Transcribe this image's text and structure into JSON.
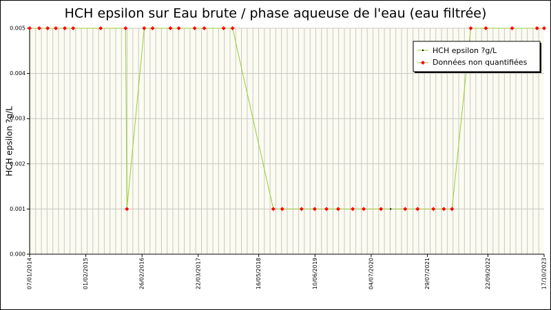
{
  "chart_data": {
    "type": "line",
    "title": "HCH epsilon sur Eau brute / phase aqueuse de l'eau (eau filtrée)",
    "y_label": "HCH epsilon ?g/L",
    "x": [
      "07/01/2014",
      "15/03/2014",
      "12/05/2014",
      "08/07/2014",
      "08/09/2014",
      "05/11/2014",
      "15/05/2015",
      "04/11/2015",
      "13/11/2015",
      "12/03/2016",
      "09/05/2016",
      "10/09/2016",
      "07/11/2016",
      "25/02/2017",
      "03/05/2017",
      "14/09/2017",
      "15/11/2017",
      "25/08/2018",
      "26/10/2018",
      "09/03/2019",
      "08/06/2019",
      "29/08/2019",
      "18/11/2019",
      "27/02/2020",
      "13/05/2020",
      "10/09/2020",
      "16/11/2020",
      "25/02/2021",
      "22/05/2021",
      "09/09/2021",
      "20/11/2021",
      "16/01/2022",
      "26/05/2022",
      "08/09/2022",
      "09/03/2023",
      "29/08/2023",
      "17/10/2023"
    ],
    "series": [
      {
        "name": "HCH epsilon ?g/L",
        "color": "#99cc33",
        "marker_color": "#000000",
        "values": [
          0.005,
          0.005,
          0.005,
          0.005,
          0.005,
          0.005,
          0.005,
          0.005,
          0.001,
          0.005,
          0.005,
          0.005,
          0.005,
          0.005,
          0.005,
          0.005,
          0.005,
          0.001,
          0.001,
          0.001,
          0.001,
          0.001,
          0.001,
          0.001,
          0.001,
          0.001,
          0.001,
          0.001,
          0.001,
          0.001,
          0.001,
          0.001,
          0.005,
          0.005,
          0.005,
          0.005,
          0.005
        ]
      },
      {
        "name": "Données non quantifiées",
        "color": "#ff0000",
        "values": [
          0.005,
          0.005,
          0.005,
          0.005,
          0.005,
          0.005,
          0.005,
          0.005,
          0.001,
          0.005,
          0.005,
          0.005,
          0.005,
          0.005,
          0.005,
          0.005,
          0.005,
          0.001,
          0.001,
          0.001,
          0.001,
          0.001,
          0.001,
          0.001,
          0.001,
          0.001,
          null,
          0.001,
          0.001,
          0.001,
          0.001,
          0.001,
          0.005,
          0.005,
          0.005,
          0.005,
          0.005
        ]
      }
    ],
    "xlim": [
      "07/01/2014",
      "17/10/2023"
    ],
    "xticks": [
      "07/01/2014",
      "01/02/2015",
      "26/02/2016",
      "22/03/2017",
      "16/05/2018",
      "10/06/2019",
      "04/07/2020",
      "29/07/2021",
      "22/09/2022",
      "17/10/2023"
    ],
    "ylim": [
      0,
      0.005
    ],
    "yticks": [
      {
        "value": 0,
        "label": "0.000"
      },
      0.001,
      0.002,
      0.003,
      0.004,
      0.005
    ],
    "grid": true,
    "legend": "upper right"
  }
}
